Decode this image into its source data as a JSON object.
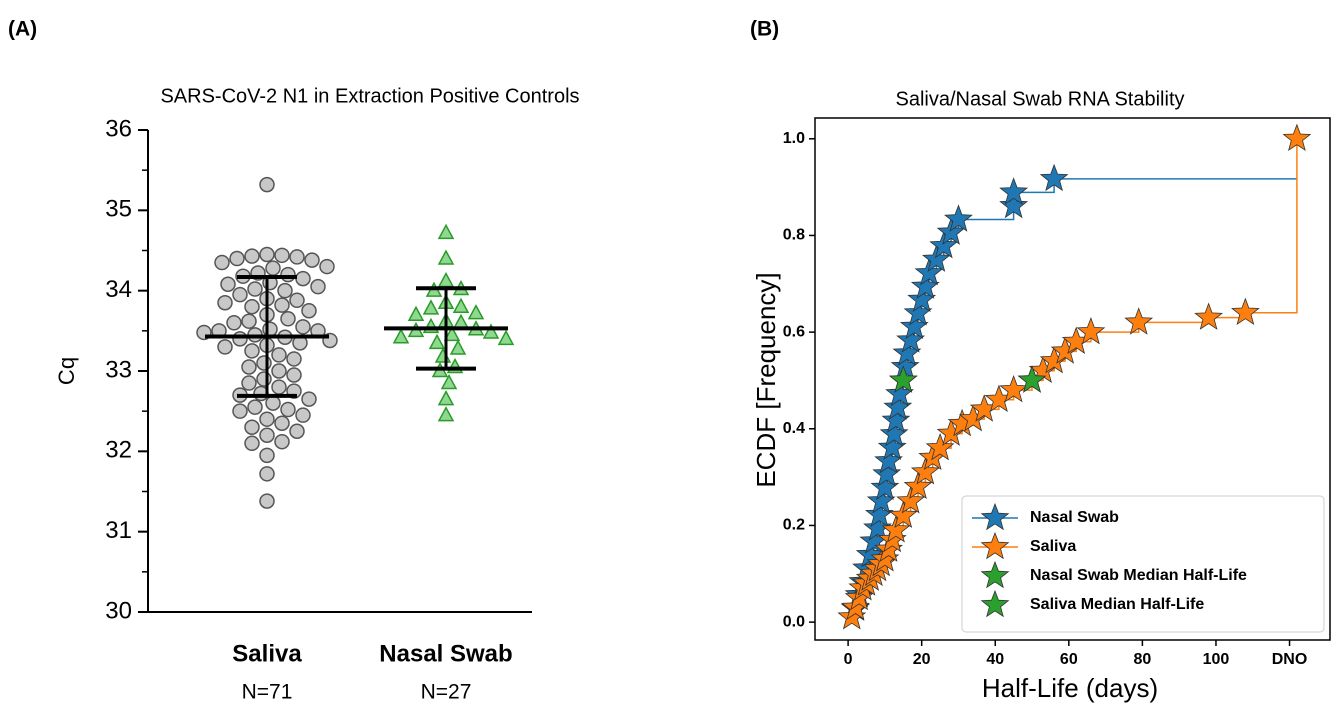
{
  "chart_data": [
    {
      "type": "strip",
      "panel_label": "(A)",
      "title": "SARS-CoV-2 N1 in Extraction Positive Controls",
      "ylabel": "Cq",
      "categories": [
        "Saliva",
        "Nasal Swab"
      ],
      "n_labels": [
        "N=71",
        "N=27"
      ],
      "ylim": [
        30,
        36
      ],
      "yticks": [
        30,
        31,
        32,
        33,
        34,
        35,
        36
      ],
      "series": [
        {
          "name": "Saliva",
          "color": "#c8c8c8",
          "edge": "#555555",
          "marker": "circle",
          "mean": 33.43,
          "sd": 0.74,
          "values": [
            35.32,
            34.45,
            34.44,
            34.43,
            34.42,
            34.4,
            34.38,
            34.35,
            34.3,
            34.28,
            34.22,
            34.2,
            34.18,
            34.15,
            34.1,
            34.08,
            34.05,
            34.02,
            34.0,
            33.95,
            33.9,
            33.88,
            33.85,
            33.82,
            33.8,
            33.75,
            33.7,
            33.65,
            33.62,
            33.6,
            33.55,
            33.52,
            33.5,
            33.5,
            33.48,
            33.45,
            33.42,
            33.4,
            33.38,
            33.35,
            33.32,
            33.3,
            33.25,
            33.2,
            33.15,
            33.1,
            33.05,
            33.0,
            32.95,
            32.9,
            32.85,
            32.8,
            32.75,
            32.72,
            32.7,
            32.65,
            32.6,
            32.55,
            32.52,
            32.5,
            32.45,
            32.4,
            32.35,
            32.3,
            32.25,
            32.2,
            32.12,
            32.1,
            31.95,
            31.72,
            31.38
          ]
        },
        {
          "name": "Nasal Swab",
          "color": "#8fd88f",
          "edge": "#2a9a2a",
          "marker": "triangle",
          "mean": 33.53,
          "sd": 0.5,
          "values": [
            34.72,
            34.4,
            34.12,
            34.02,
            34.0,
            33.85,
            33.8,
            33.78,
            33.72,
            33.7,
            33.62,
            33.6,
            33.55,
            33.52,
            33.5,
            33.48,
            33.45,
            33.42,
            33.4,
            33.35,
            33.28,
            33.18,
            33.05,
            33.0,
            32.85,
            32.65,
            32.45
          ]
        }
      ]
    },
    {
      "type": "ecdf",
      "panel_label": "(B)",
      "title": "Saliva/Nasal Swab RNA Stability",
      "xlabel": "Half-Life (days)",
      "ylabel": "ECDF [Frequency]",
      "xlim": [
        -9,
        131
      ],
      "xticks": [
        0,
        20,
        40,
        60,
        80,
        100,
        {
          "value": 120,
          "label": "DNO"
        }
      ],
      "ylim": [
        -0.037,
        1.043
      ],
      "yticks": [
        {
          "value": 0,
          "label": "0.0"
        },
        0.2,
        0.4,
        0.6,
        0.8,
        {
          "value": 1,
          "label": "1.0"
        }
      ],
      "legend": "lower right",
      "series": [
        {
          "name": "Nasal Swab",
          "color": "#1f77b4",
          "line": true,
          "x": [
            2,
            3,
            4,
            5,
            6,
            7,
            8,
            8.5,
            9,
            10,
            10.5,
            11,
            12,
            12.5,
            13,
            13.5,
            14,
            15,
            15.5,
            16,
            17,
            18,
            19,
            20,
            21,
            22,
            24,
            26,
            28,
            30,
            45,
            45,
            56
          ],
          "y": [
            0.028,
            0.056,
            0.083,
            0.111,
            0.139,
            0.167,
            0.194,
            0.222,
            0.25,
            0.278,
            0.306,
            0.333,
            0.361,
            0.389,
            0.417,
            0.444,
            0.472,
            0.5,
            0.528,
            0.556,
            0.583,
            0.611,
            0.639,
            0.667,
            0.694,
            0.722,
            0.75,
            0.778,
            0.806,
            0.833,
            0.861,
            0.889,
            0.917
          ]
        },
        {
          "name": "Saliva",
          "color": "#ff7f0e",
          "line": true,
          "x": [
            1,
            2,
            3,
            4,
            5,
            6,
            7,
            8,
            9,
            10,
            11,
            12,
            13,
            15,
            17,
            19,
            21,
            23,
            25,
            28,
            31,
            34,
            37,
            41,
            45,
            50,
            53,
            56,
            59,
            62,
            66,
            79,
            98,
            108,
            122
          ],
          "y": [
            0.01,
            0.03,
            0.05,
            0.07,
            0.08,
            0.09,
            0.1,
            0.11,
            0.12,
            0.13,
            0.15,
            0.17,
            0.19,
            0.22,
            0.25,
            0.28,
            0.31,
            0.34,
            0.36,
            0.39,
            0.41,
            0.42,
            0.44,
            0.46,
            0.48,
            0.5,
            0.52,
            0.54,
            0.56,
            0.58,
            0.6,
            0.62,
            0.63,
            0.64,
            1.0
          ]
        },
        {
          "name": "Nasal Swab Median Half-Life",
          "color": "#2ca02c",
          "line": false,
          "x": [
            15
          ],
          "y": [
            0.5
          ]
        },
        {
          "name": "Saliva Median Half-Life",
          "color": "#2ca02c",
          "line": false,
          "x": [
            50
          ],
          "y": [
            0.5
          ]
        }
      ]
    }
  ]
}
